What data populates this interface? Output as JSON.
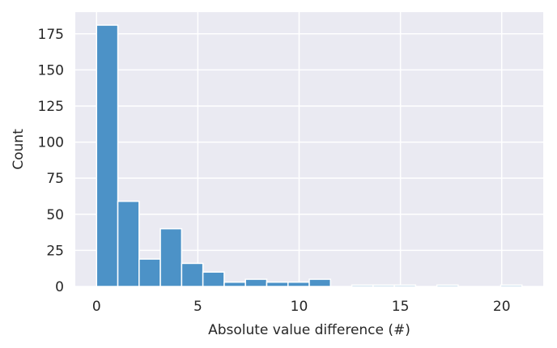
{
  "chart_data": {
    "type": "histogram",
    "title": "",
    "xlabel": "Absolute value difference (#)",
    "ylabel": "Count",
    "xlim": [
      -1.05,
      22.05
    ],
    "ylim": [
      0,
      190
    ],
    "xticks": [
      0,
      5,
      10,
      15,
      20
    ],
    "yticks": [
      0,
      25,
      50,
      75,
      100,
      125,
      150,
      175
    ],
    "grid": true,
    "legend": "none",
    "colors": {
      "background": "#eaeaf2",
      "grid": "#ffffff",
      "bar_fill": "#4c92c7",
      "bar_edge": "#ffffff",
      "text": "#262626"
    },
    "bin_width": 1.05,
    "bin_edges": [
      0,
      1.05,
      2.1,
      3.15,
      4.2,
      5.25,
      6.3,
      7.35,
      8.4,
      9.45,
      10.5,
      11.55,
      12.6,
      13.65,
      14.7,
      15.75,
      16.8,
      17.85,
      18.9,
      19.95,
      21.0
    ],
    "counts": [
      181,
      59,
      19,
      40,
      16,
      10,
      3,
      5,
      3,
      3,
      5,
      0,
      1,
      1,
      1,
      0,
      1,
      0,
      0,
      1
    ]
  }
}
